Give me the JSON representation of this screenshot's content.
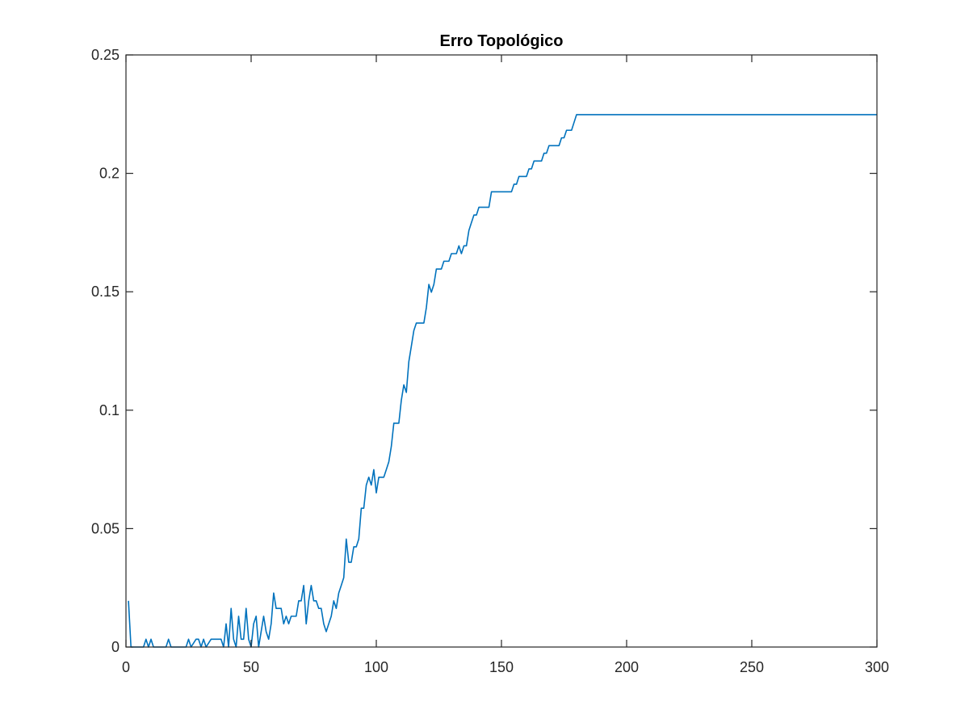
{
  "chart_data": {
    "type": "line",
    "title": "Erro Topológico",
    "xlabel": "",
    "ylabel": "",
    "xlim": [
      0,
      300
    ],
    "ylim": [
      0,
      0.25
    ],
    "x_ticks": [
      0,
      50,
      100,
      150,
      200,
      250,
      300
    ],
    "y_ticks": [
      0,
      0.05,
      0.1,
      0.15,
      0.2,
      0.25
    ],
    "x_tick_labels": [
      "0",
      "50",
      "100",
      "150",
      "200",
      "250",
      "300"
    ],
    "y_tick_labels": [
      "0",
      "0.05",
      "0.1",
      "0.15",
      "0.2",
      "0.25"
    ],
    "grid": false,
    "box": true,
    "series": [
      {
        "color": "#0072BD",
        "points": [
          [
            1,
            0.0195
          ],
          [
            2,
            0
          ],
          [
            7,
            0
          ],
          [
            8,
            0.0033
          ],
          [
            9,
            0
          ],
          [
            10,
            0.0033
          ],
          [
            11,
            0
          ],
          [
            16,
            0
          ],
          [
            17,
            0.0033
          ],
          [
            18,
            0
          ],
          [
            24,
            0
          ],
          [
            25,
            0.0033
          ],
          [
            26,
            0
          ],
          [
            28,
            0.0033
          ],
          [
            29,
            0.0033
          ],
          [
            30,
            0
          ],
          [
            31,
            0.0033
          ],
          [
            32,
            0
          ],
          [
            34,
            0.0033
          ],
          [
            38,
            0.0033
          ],
          [
            39,
            0
          ],
          [
            40,
            0.0098
          ],
          [
            41,
            0
          ],
          [
            42,
            0.0163
          ],
          [
            43,
            0.0033
          ],
          [
            44,
            0
          ],
          [
            45,
            0.013
          ],
          [
            46,
            0.0033
          ],
          [
            47,
            0.0033
          ],
          [
            48,
            0.0163
          ],
          [
            49,
            0.0033
          ],
          [
            50,
            0
          ],
          [
            51,
            0.0098
          ],
          [
            52,
            0.013
          ],
          [
            53,
            0
          ],
          [
            54,
            0.0065
          ],
          [
            55,
            0.013
          ],
          [
            56,
            0.0065
          ],
          [
            57,
            0.0033
          ],
          [
            58,
            0.0098
          ],
          [
            59,
            0.0228
          ],
          [
            60,
            0.0163
          ],
          [
            62,
            0.0163
          ],
          [
            63,
            0.0098
          ],
          [
            64,
            0.013
          ],
          [
            65,
            0.0098
          ],
          [
            66,
            0.013
          ],
          [
            68,
            0.013
          ],
          [
            69,
            0.0195
          ],
          [
            70,
            0.0195
          ],
          [
            71,
            0.026
          ],
          [
            72,
            0.0098
          ],
          [
            73,
            0.0195
          ],
          [
            74,
            0.026
          ],
          [
            75,
            0.0195
          ],
          [
            76,
            0.0195
          ],
          [
            77,
            0.0163
          ],
          [
            78,
            0.0163
          ],
          [
            79,
            0.0098
          ],
          [
            80,
            0.0065
          ],
          [
            81,
            0.0098
          ],
          [
            82,
            0.013
          ],
          [
            83,
            0.0195
          ],
          [
            84,
            0.0163
          ],
          [
            85,
            0.0228
          ],
          [
            86,
            0.026
          ],
          [
            87,
            0.0293
          ],
          [
            88,
            0.0456
          ],
          [
            89,
            0.0358
          ],
          [
            90,
            0.0358
          ],
          [
            91,
            0.0423
          ],
          [
            92,
            0.0423
          ],
          [
            93,
            0.0456
          ],
          [
            94,
            0.0586
          ],
          [
            95,
            0.0586
          ],
          [
            96,
            0.0684
          ],
          [
            97,
            0.0717
          ],
          [
            98,
            0.0684
          ],
          [
            99,
            0.0749
          ],
          [
            100,
            0.0651
          ],
          [
            101,
            0.0717
          ],
          [
            102,
            0.0717
          ],
          [
            103,
            0.0717
          ],
          [
            104,
            0.0749
          ],
          [
            105,
            0.0782
          ],
          [
            106,
            0.0847
          ],
          [
            107,
            0.0945
          ],
          [
            108,
            0.0945
          ],
          [
            109,
            0.0945
          ],
          [
            110,
            0.1042
          ],
          [
            111,
            0.1107
          ],
          [
            112,
            0.1075
          ],
          [
            113,
            0.1205
          ],
          [
            114,
            0.127
          ],
          [
            115,
            0.1336
          ],
          [
            116,
            0.1368
          ],
          [
            117,
            0.1368
          ],
          [
            119,
            0.1368
          ],
          [
            120,
            0.1433
          ],
          [
            121,
            0.1531
          ],
          [
            122,
            0.1498
          ],
          [
            123,
            0.1531
          ],
          [
            124,
            0.1596
          ],
          [
            125,
            0.1596
          ],
          [
            126,
            0.1596
          ],
          [
            127,
            0.1629
          ],
          [
            129,
            0.1629
          ],
          [
            130,
            0.1661
          ],
          [
            132,
            0.1661
          ],
          [
            133,
            0.1694
          ],
          [
            134,
            0.1661
          ],
          [
            135,
            0.1694
          ],
          [
            136,
            0.1694
          ],
          [
            137,
            0.1759
          ],
          [
            138,
            0.1792
          ],
          [
            139,
            0.1824
          ],
          [
            140,
            0.1824
          ],
          [
            141,
            0.1857
          ],
          [
            145,
            0.1857
          ],
          [
            146,
            0.1922
          ],
          [
            154,
            0.1922
          ],
          [
            155,
            0.1954
          ],
          [
            156,
            0.1954
          ],
          [
            157,
            0.1987
          ],
          [
            160,
            0.1987
          ],
          [
            161,
            0.2019
          ],
          [
            162,
            0.2019
          ],
          [
            163,
            0.2052
          ],
          [
            166,
            0.2052
          ],
          [
            167,
            0.2085
          ],
          [
            168,
            0.2085
          ],
          [
            169,
            0.2117
          ],
          [
            173,
            0.2117
          ],
          [
            174,
            0.215
          ],
          [
            175,
            0.215
          ],
          [
            176,
            0.2182
          ],
          [
            178,
            0.2182
          ],
          [
            179,
            0.2215
          ],
          [
            180,
            0.2248
          ],
          [
            181,
            0.2248
          ],
          [
            300,
            0.2248
          ]
        ]
      }
    ]
  }
}
